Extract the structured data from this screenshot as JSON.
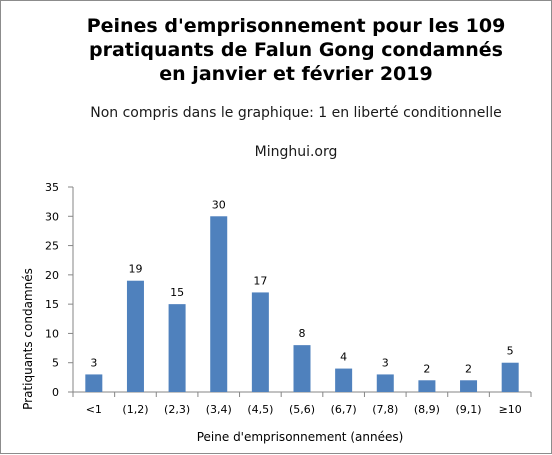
{
  "chart_data": {
    "type": "bar",
    "title_lines": [
      "Peines d'emprisonnement pour les 109",
      "pratiquants de Falun Gong condamnés",
      "en janvier et février 2019"
    ],
    "subtitle": "Non compris dans le graphique:  1 en liberté conditionnelle",
    "source": "Minghui.org",
    "xlabel": "Peine d'emprisonnement (années)",
    "ylabel": "Pratiquants condamnés",
    "categories": [
      "<1",
      "(1,2)",
      "(2,3)",
      "(3,4)",
      "(4,5)",
      "(5,6)",
      "(6,7)",
      "(7,8)",
      "(8,9)",
      "(9,1)",
      "≥10"
    ],
    "values": [
      3,
      19,
      15,
      30,
      17,
      8,
      4,
      3,
      2,
      2,
      5
    ],
    "ylim": [
      0,
      35
    ],
    "yticks": [
      0,
      5,
      10,
      15,
      20,
      25,
      30,
      35
    ],
    "grid": false,
    "legend": "none",
    "bar_color": "#4f81bd"
  }
}
